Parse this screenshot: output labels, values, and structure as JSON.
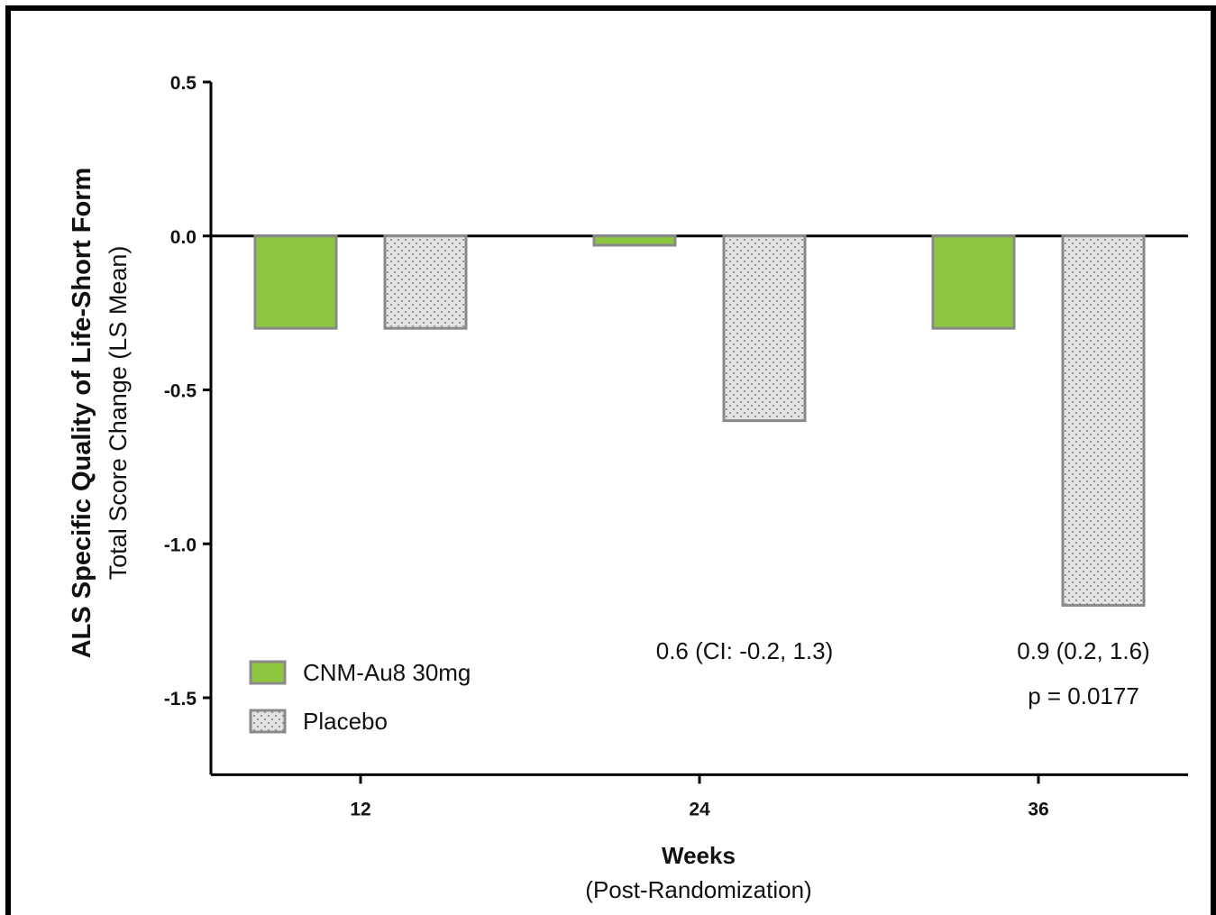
{
  "chart_data": {
    "type": "bar",
    "categories": [
      "12",
      "24",
      "36"
    ],
    "series": [
      {
        "name": "CNM-Au8 30mg",
        "values": [
          -0.3,
          -0.03,
          -0.3
        ],
        "color": "#8dc63f"
      },
      {
        "name": "Placebo",
        "values": [
          -0.3,
          -0.6,
          -1.2
        ],
        "color": "#e0e0e0"
      }
    ],
    "ylim": [
      -1.75,
      0.5
    ],
    "yticks": [
      "0.5",
      "0.0",
      "-0.5",
      "-1.0",
      "-1.5"
    ],
    "ylabel_line1": "ALS Specific Quality of Life-Short Form",
    "ylabel_line2": "Total Score Change (LS Mean)",
    "xlabel_line1": "Weeks",
    "xlabel_line2": "(Post-Randomization)",
    "annotations": [
      {
        "category": "24",
        "lines": [
          "0.6 (CI: -0.2, 1.3)"
        ]
      },
      {
        "category": "36",
        "lines": [
          "0.9 (0.2, 1.6)",
          "p =  0.0177"
        ]
      }
    ],
    "legend_position": "bottom-left",
    "grid": false,
    "bar_edge_color": "#8a8a8a"
  }
}
